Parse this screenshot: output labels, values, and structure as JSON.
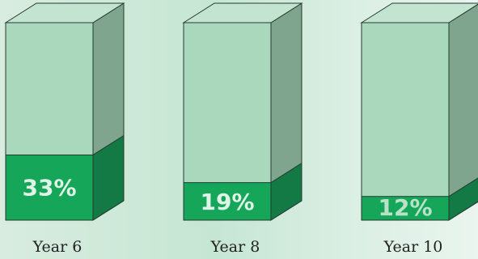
{
  "chart_data": {
    "type": "bar",
    "categories": [
      "Year 6",
      "Year 8",
      "Year 10"
    ],
    "values": [
      33,
      19,
      12
    ],
    "value_labels": [
      "33%",
      "19%",
      "12%"
    ],
    "ylim": [
      0,
      100
    ],
    "unit": "%"
  },
  "colors": {
    "box_front": "#a9d8bd",
    "box_side": "#7fa58f",
    "box_top": "#c3e4d0",
    "fill_front": "#15a65a",
    "fill_side": "#137a45",
    "fill_top": "#1c9a57",
    "edge": "#223b2e",
    "label_on_fill": "#dff3e6",
    "label_faded": "#b9e2c9"
  }
}
